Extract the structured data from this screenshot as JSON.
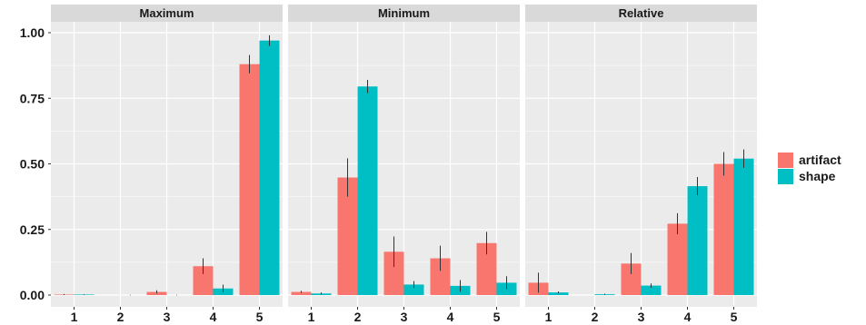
{
  "chart_data": {
    "type": "bar",
    "facets": [
      "Maximum",
      "Minimum",
      "Relative"
    ],
    "categories": [
      "1",
      "2",
      "3",
      "4",
      "5"
    ],
    "ylim": [
      0,
      1.0
    ],
    "yticks": [
      "0.00",
      "0.25",
      "0.50",
      "0.75",
      "1.00"
    ],
    "ytick_values": [
      0,
      0.25,
      0.5,
      0.75,
      1.0
    ],
    "legend_position": "right",
    "grid": true,
    "colors": {
      "artifact": "#F8766D",
      "shape": "#00BFC4",
      "panel_bg": "#EBEBEB",
      "strip_bg": "#D9D9D9",
      "grid": "#FFFFFF"
    },
    "series": [
      {
        "name": "artifact",
        "panels": [
          {
            "values": [
              0.002,
              0.0,
              0.012,
              0.11,
              0.88
            ],
            "errors": [
              0.002,
              0.0,
              0.006,
              0.03,
              0.035
            ]
          },
          {
            "values": [
              0.012,
              0.448,
              0.165,
              0.14,
              0.198
            ],
            "errors": [
              0.004,
              0.073,
              0.058,
              0.048,
              0.043
            ]
          },
          {
            "values": [
              0.047,
              0.0,
              0.12,
              0.272,
              0.5
            ],
            "errors": [
              0.038,
              0.0,
              0.04,
              0.04,
              0.045
            ]
          }
        ]
      },
      {
        "name": "shape",
        "panels": [
          {
            "values": [
              0.002,
              0.0,
              0.0,
              0.025,
              0.97
            ],
            "errors": [
              0.001,
              0.001,
              0.001,
              0.015,
              0.02
            ]
          },
          {
            "values": [
              0.006,
              0.795,
              0.04,
              0.035,
              0.047
            ],
            "errors": [
              0.004,
              0.025,
              0.013,
              0.022,
              0.025
            ]
          },
          {
            "values": [
              0.01,
              0.003,
              0.036,
              0.415,
              0.52
            ],
            "errors": [
              0.004,
              0.002,
              0.008,
              0.035,
              0.035
            ]
          }
        ]
      }
    ]
  }
}
